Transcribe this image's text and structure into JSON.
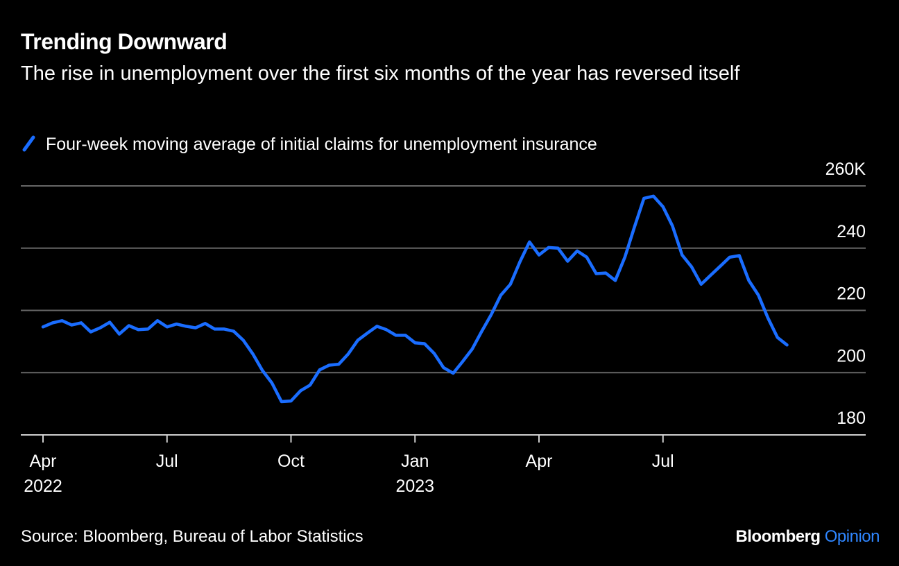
{
  "chart_data": {
    "type": "line",
    "title": "Trending Downward",
    "subtitle": "The rise in unemployment over the first six months of the year has reversed itself",
    "categories": [
      "Apr 2022",
      null,
      null,
      null,
      null,
      null,
      null,
      null,
      null,
      null,
      null,
      null,
      null,
      "Jul",
      null,
      null,
      null,
      null,
      null,
      null,
      null,
      null,
      null,
      null,
      null,
      null,
      "Oct",
      null,
      null,
      null,
      null,
      null,
      null,
      null,
      null,
      null,
      null,
      null,
      null,
      "Jan 2023",
      null,
      null,
      null,
      null,
      null,
      null,
      null,
      null,
      null,
      null,
      null,
      null,
      "Apr",
      null,
      null,
      null,
      null,
      null,
      null,
      null,
      null,
      null,
      null,
      null,
      null,
      "Jul",
      null,
      null,
      null,
      null,
      null,
      null,
      null,
      null,
      null,
      null,
      null,
      null,
      null
    ],
    "series": [
      {
        "name": "Four-week moving average of initial claims for unemployment insurance",
        "color": "#1a6dff",
        "values": [
          214.7,
          216,
          216.7,
          215.3,
          216,
          213.1,
          214.4,
          216.2,
          212.4,
          215.1,
          213.8,
          214,
          216.7,
          214.7,
          215.6,
          214.9,
          214.4,
          215.8,
          214,
          214,
          213.3,
          210.4,
          206,
          200.7,
          196.7,
          190.7,
          190.9,
          194.2,
          196,
          200.9,
          202.4,
          202.7,
          206,
          210.4,
          212.7,
          214.9,
          213.8,
          212,
          212,
          209.6,
          209.3,
          206.2,
          201.6,
          199.8,
          203.6,
          207.6,
          213.3,
          218.7,
          224.9,
          228.4,
          235.6,
          242,
          237.8,
          240.2,
          240,
          235.8,
          239.1,
          237.1,
          231.8,
          232,
          229.6,
          237.1,
          246.7,
          256,
          256.7,
          253.3,
          247.1,
          237.8,
          234,
          228.4,
          231.3,
          234.2,
          237.1,
          237.6,
          229.6,
          224.9,
          217.6,
          211.3,
          208.9
        ]
      }
    ],
    "ylim": [
      180,
      260
    ],
    "yticks": [
      180,
      200,
      220,
      240,
      {
        "value": 260,
        "label": "260K"
      }
    ],
    "grid": true,
    "source": "Source: Bloomberg, Bureau of Labor Statistics",
    "logo": {
      "brand": "Bloomberg",
      "product": "Opinion"
    }
  }
}
